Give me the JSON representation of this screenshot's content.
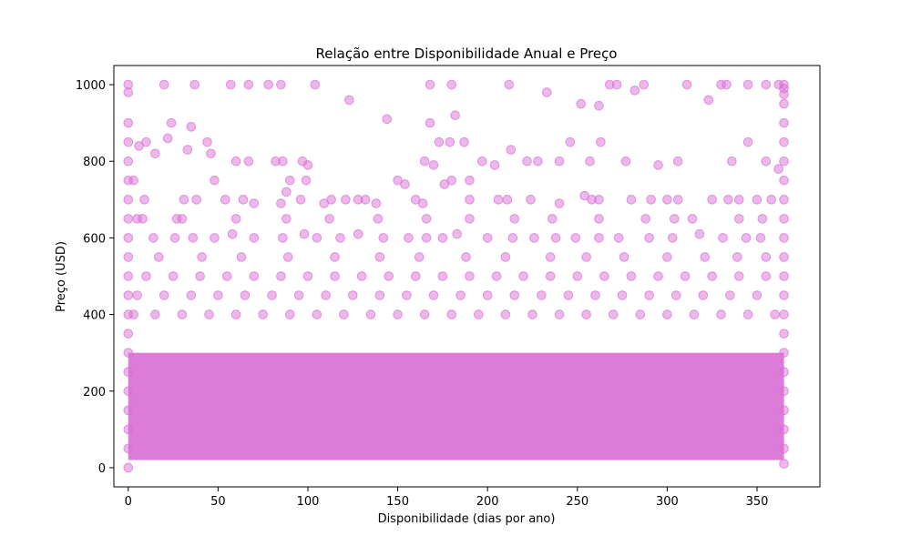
{
  "chart_data": {
    "type": "scatter",
    "title": "Relação entre Disponibilidade Anual e Preço",
    "xlabel": "Disponibilidade (dias por ano)",
    "ylabel": "Preço (USD)",
    "xlim": [
      -8,
      385
    ],
    "ylim": [
      -50,
      1050
    ],
    "xticks": [
      0,
      50,
      100,
      150,
      200,
      250,
      300,
      350
    ],
    "yticks": [
      0,
      200,
      400,
      600,
      800,
      1000
    ],
    "grid": false,
    "legend": "none",
    "marker_color": "#da70d6",
    "marker_alpha": 0.5,
    "series": [
      {
        "points": [
          [
            0,
            1000
          ],
          [
            0,
            980
          ],
          [
            0,
            900
          ],
          [
            0,
            850
          ],
          [
            0,
            800
          ],
          [
            0,
            750
          ],
          [
            0,
            700
          ],
          [
            0,
            650
          ],
          [
            0,
            600
          ],
          [
            0,
            550
          ],
          [
            0,
            500
          ],
          [
            0,
            450
          ],
          [
            0,
            400
          ],
          [
            0,
            350
          ],
          [
            0,
            300
          ],
          [
            0,
            250
          ],
          [
            0,
            200
          ],
          [
            0,
            150
          ],
          [
            0,
            100
          ],
          [
            0,
            50
          ],
          [
            0,
            0
          ],
          [
            20,
            1000
          ],
          [
            37,
            1000
          ],
          [
            57,
            1000
          ],
          [
            67,
            1000
          ],
          [
            78,
            1000
          ],
          [
            85,
            1000
          ],
          [
            104,
            1000
          ],
          [
            168,
            1000
          ],
          [
            180,
            1000
          ],
          [
            212,
            1000
          ],
          [
            268,
            1000
          ],
          [
            272,
            1000
          ],
          [
            287,
            1000
          ],
          [
            311,
            1000
          ],
          [
            330,
            1000
          ],
          [
            333,
            1000
          ],
          [
            345,
            1000
          ],
          [
            355,
            1000
          ],
          [
            362,
            1000
          ],
          [
            365,
            1000
          ],
          [
            365,
            990
          ],
          [
            365,
            975
          ],
          [
            365,
            950
          ],
          [
            365,
            900
          ],
          [
            365,
            850
          ],
          [
            365,
            800
          ],
          [
            365,
            750
          ],
          [
            365,
            700
          ],
          [
            365,
            650
          ],
          [
            365,
            600
          ],
          [
            365,
            550
          ],
          [
            365,
            500
          ],
          [
            365,
            450
          ],
          [
            365,
            400
          ],
          [
            365,
            350
          ],
          [
            365,
            300
          ],
          [
            365,
            250
          ],
          [
            365,
            200
          ],
          [
            365,
            150
          ],
          [
            365,
            100
          ],
          [
            365,
            50
          ],
          [
            365,
            10
          ],
          [
            123,
            960
          ],
          [
            144,
            910
          ],
          [
            168,
            900
          ],
          [
            182,
            920
          ],
          [
            233,
            980
          ],
          [
            252,
            950
          ],
          [
            262,
            945
          ],
          [
            282,
            985
          ],
          [
            323,
            960
          ],
          [
            24,
            900
          ],
          [
            35,
            890
          ],
          [
            44,
            850
          ],
          [
            22,
            860
          ],
          [
            15,
            820
          ],
          [
            6,
            840
          ],
          [
            10,
            850
          ],
          [
            33,
            830
          ],
          [
            46,
            820
          ],
          [
            173,
            850
          ],
          [
            179,
            850
          ],
          [
            187,
            850
          ],
          [
            213,
            830
          ],
          [
            240,
            800
          ],
          [
            246,
            850
          ],
          [
            257,
            800
          ],
          [
            263,
            850
          ],
          [
            277,
            800
          ],
          [
            295,
            790
          ],
          [
            306,
            800
          ],
          [
            336,
            800
          ],
          [
            345,
            850
          ],
          [
            355,
            800
          ],
          [
            362,
            780
          ],
          [
            60,
            800
          ],
          [
            67,
            800
          ],
          [
            82,
            800
          ],
          [
            86,
            800
          ],
          [
            97,
            800
          ],
          [
            100,
            790
          ],
          [
            165,
            800
          ],
          [
            170,
            790
          ],
          [
            197,
            800
          ],
          [
            204,
            790
          ],
          [
            222,
            800
          ],
          [
            228,
            800
          ],
          [
            190,
            750
          ],
          [
            180,
            750
          ],
          [
            176,
            740
          ],
          [
            150,
            750
          ],
          [
            154,
            740
          ],
          [
            128,
            700
          ],
          [
            132,
            700
          ],
          [
            121,
            700
          ],
          [
            99,
            750
          ],
          [
            90,
            750
          ],
          [
            88,
            720
          ],
          [
            48,
            750
          ],
          [
            38,
            700
          ],
          [
            31,
            700
          ],
          [
            9,
            700
          ],
          [
            3,
            750
          ],
          [
            5,
            650
          ],
          [
            27,
            650
          ],
          [
            54,
            700
          ],
          [
            64,
            700
          ],
          [
            70,
            690
          ],
          [
            85,
            690
          ],
          [
            96,
            700
          ],
          [
            109,
            690
          ],
          [
            113,
            700
          ],
          [
            138,
            690
          ],
          [
            160,
            700
          ],
          [
            164,
            690
          ],
          [
            190,
            700
          ],
          [
            206,
            700
          ],
          [
            211,
            700
          ],
          [
            224,
            700
          ],
          [
            240,
            690
          ],
          [
            254,
            710
          ],
          [
            258,
            700
          ],
          [
            262,
            700
          ],
          [
            280,
            700
          ],
          [
            291,
            700
          ],
          [
            300,
            700
          ],
          [
            306,
            700
          ],
          [
            325,
            700
          ],
          [
            334,
            700
          ],
          [
            340,
            700
          ],
          [
            350,
            700
          ],
          [
            358,
            700
          ],
          [
            14,
            600
          ],
          [
            26,
            600
          ],
          [
            36,
            600
          ],
          [
            48,
            600
          ],
          [
            58,
            610
          ],
          [
            70,
            600
          ],
          [
            86,
            600
          ],
          [
            98,
            610
          ],
          [
            105,
            600
          ],
          [
            118,
            600
          ],
          [
            128,
            610
          ],
          [
            142,
            600
          ],
          [
            156,
            600
          ],
          [
            166,
            600
          ],
          [
            175,
            600
          ],
          [
            183,
            610
          ],
          [
            200,
            600
          ],
          [
            214,
            600
          ],
          [
            226,
            600
          ],
          [
            238,
            600
          ],
          [
            249,
            600
          ],
          [
            262,
            600
          ],
          [
            273,
            600
          ],
          [
            290,
            600
          ],
          [
            303,
            600
          ],
          [
            318,
            610
          ],
          [
            331,
            600
          ],
          [
            344,
            600
          ],
          [
            352,
            600
          ],
          [
            8,
            650
          ],
          [
            30,
            650
          ],
          [
            60,
            650
          ],
          [
            88,
            650
          ],
          [
            112,
            650
          ],
          [
            139,
            650
          ],
          [
            166,
            650
          ],
          [
            190,
            650
          ],
          [
            215,
            650
          ],
          [
            236,
            650
          ],
          [
            262,
            650
          ],
          [
            288,
            650
          ],
          [
            304,
            650
          ],
          [
            314,
            650
          ],
          [
            340,
            650
          ],
          [
            353,
            650
          ],
          [
            17,
            550
          ],
          [
            41,
            550
          ],
          [
            63,
            550
          ],
          [
            89,
            550
          ],
          [
            115,
            550
          ],
          [
            140,
            550
          ],
          [
            162,
            550
          ],
          [
            188,
            550
          ],
          [
            210,
            550
          ],
          [
            235,
            550
          ],
          [
            255,
            550
          ],
          [
            276,
            550
          ],
          [
            300,
            550
          ],
          [
            321,
            550
          ],
          [
            339,
            550
          ],
          [
            355,
            550
          ],
          [
            10,
            500
          ],
          [
            25,
            500
          ],
          [
            40,
            500
          ],
          [
            55,
            500
          ],
          [
            70,
            500
          ],
          [
            85,
            500
          ],
          [
            100,
            500
          ],
          [
            115,
            500
          ],
          [
            130,
            500
          ],
          [
            145,
            500
          ],
          [
            160,
            500
          ],
          [
            175,
            500
          ],
          [
            190,
            500
          ],
          [
            205,
            500
          ],
          [
            220,
            500
          ],
          [
            235,
            500
          ],
          [
            250,
            500
          ],
          [
            265,
            500
          ],
          [
            280,
            500
          ],
          [
            295,
            500
          ],
          [
            310,
            500
          ],
          [
            325,
            500
          ],
          [
            340,
            500
          ],
          [
            355,
            500
          ],
          [
            5,
            450
          ],
          [
            20,
            450
          ],
          [
            35,
            450
          ],
          [
            50,
            450
          ],
          [
            65,
            450
          ],
          [
            80,
            450
          ],
          [
            95,
            450
          ],
          [
            110,
            450
          ],
          [
            125,
            450
          ],
          [
            140,
            450
          ],
          [
            155,
            450
          ],
          [
            170,
            450
          ],
          [
            185,
            450
          ],
          [
            200,
            450
          ],
          [
            215,
            450
          ],
          [
            230,
            450
          ],
          [
            245,
            450
          ],
          [
            260,
            450
          ],
          [
            275,
            450
          ],
          [
            290,
            450
          ],
          [
            305,
            450
          ],
          [
            320,
            450
          ],
          [
            335,
            450
          ],
          [
            350,
            450
          ],
          [
            3,
            400
          ],
          [
            15,
            400
          ],
          [
            30,
            400
          ],
          [
            45,
            400
          ],
          [
            60,
            400
          ],
          [
            75,
            400
          ],
          [
            90,
            400
          ],
          [
            105,
            400
          ],
          [
            120,
            400
          ],
          [
            135,
            400
          ],
          [
            150,
            400
          ],
          [
            165,
            400
          ],
          [
            180,
            400
          ],
          [
            195,
            400
          ],
          [
            210,
            400
          ],
          [
            225,
            400
          ],
          [
            240,
            400
          ],
          [
            255,
            400
          ],
          [
            270,
            400
          ],
          [
            285,
            400
          ],
          [
            300,
            400
          ],
          [
            315,
            400
          ],
          [
            330,
            400
          ],
          [
            345,
            400
          ],
          [
            360,
            400
          ]
        ]
      }
    ]
  }
}
